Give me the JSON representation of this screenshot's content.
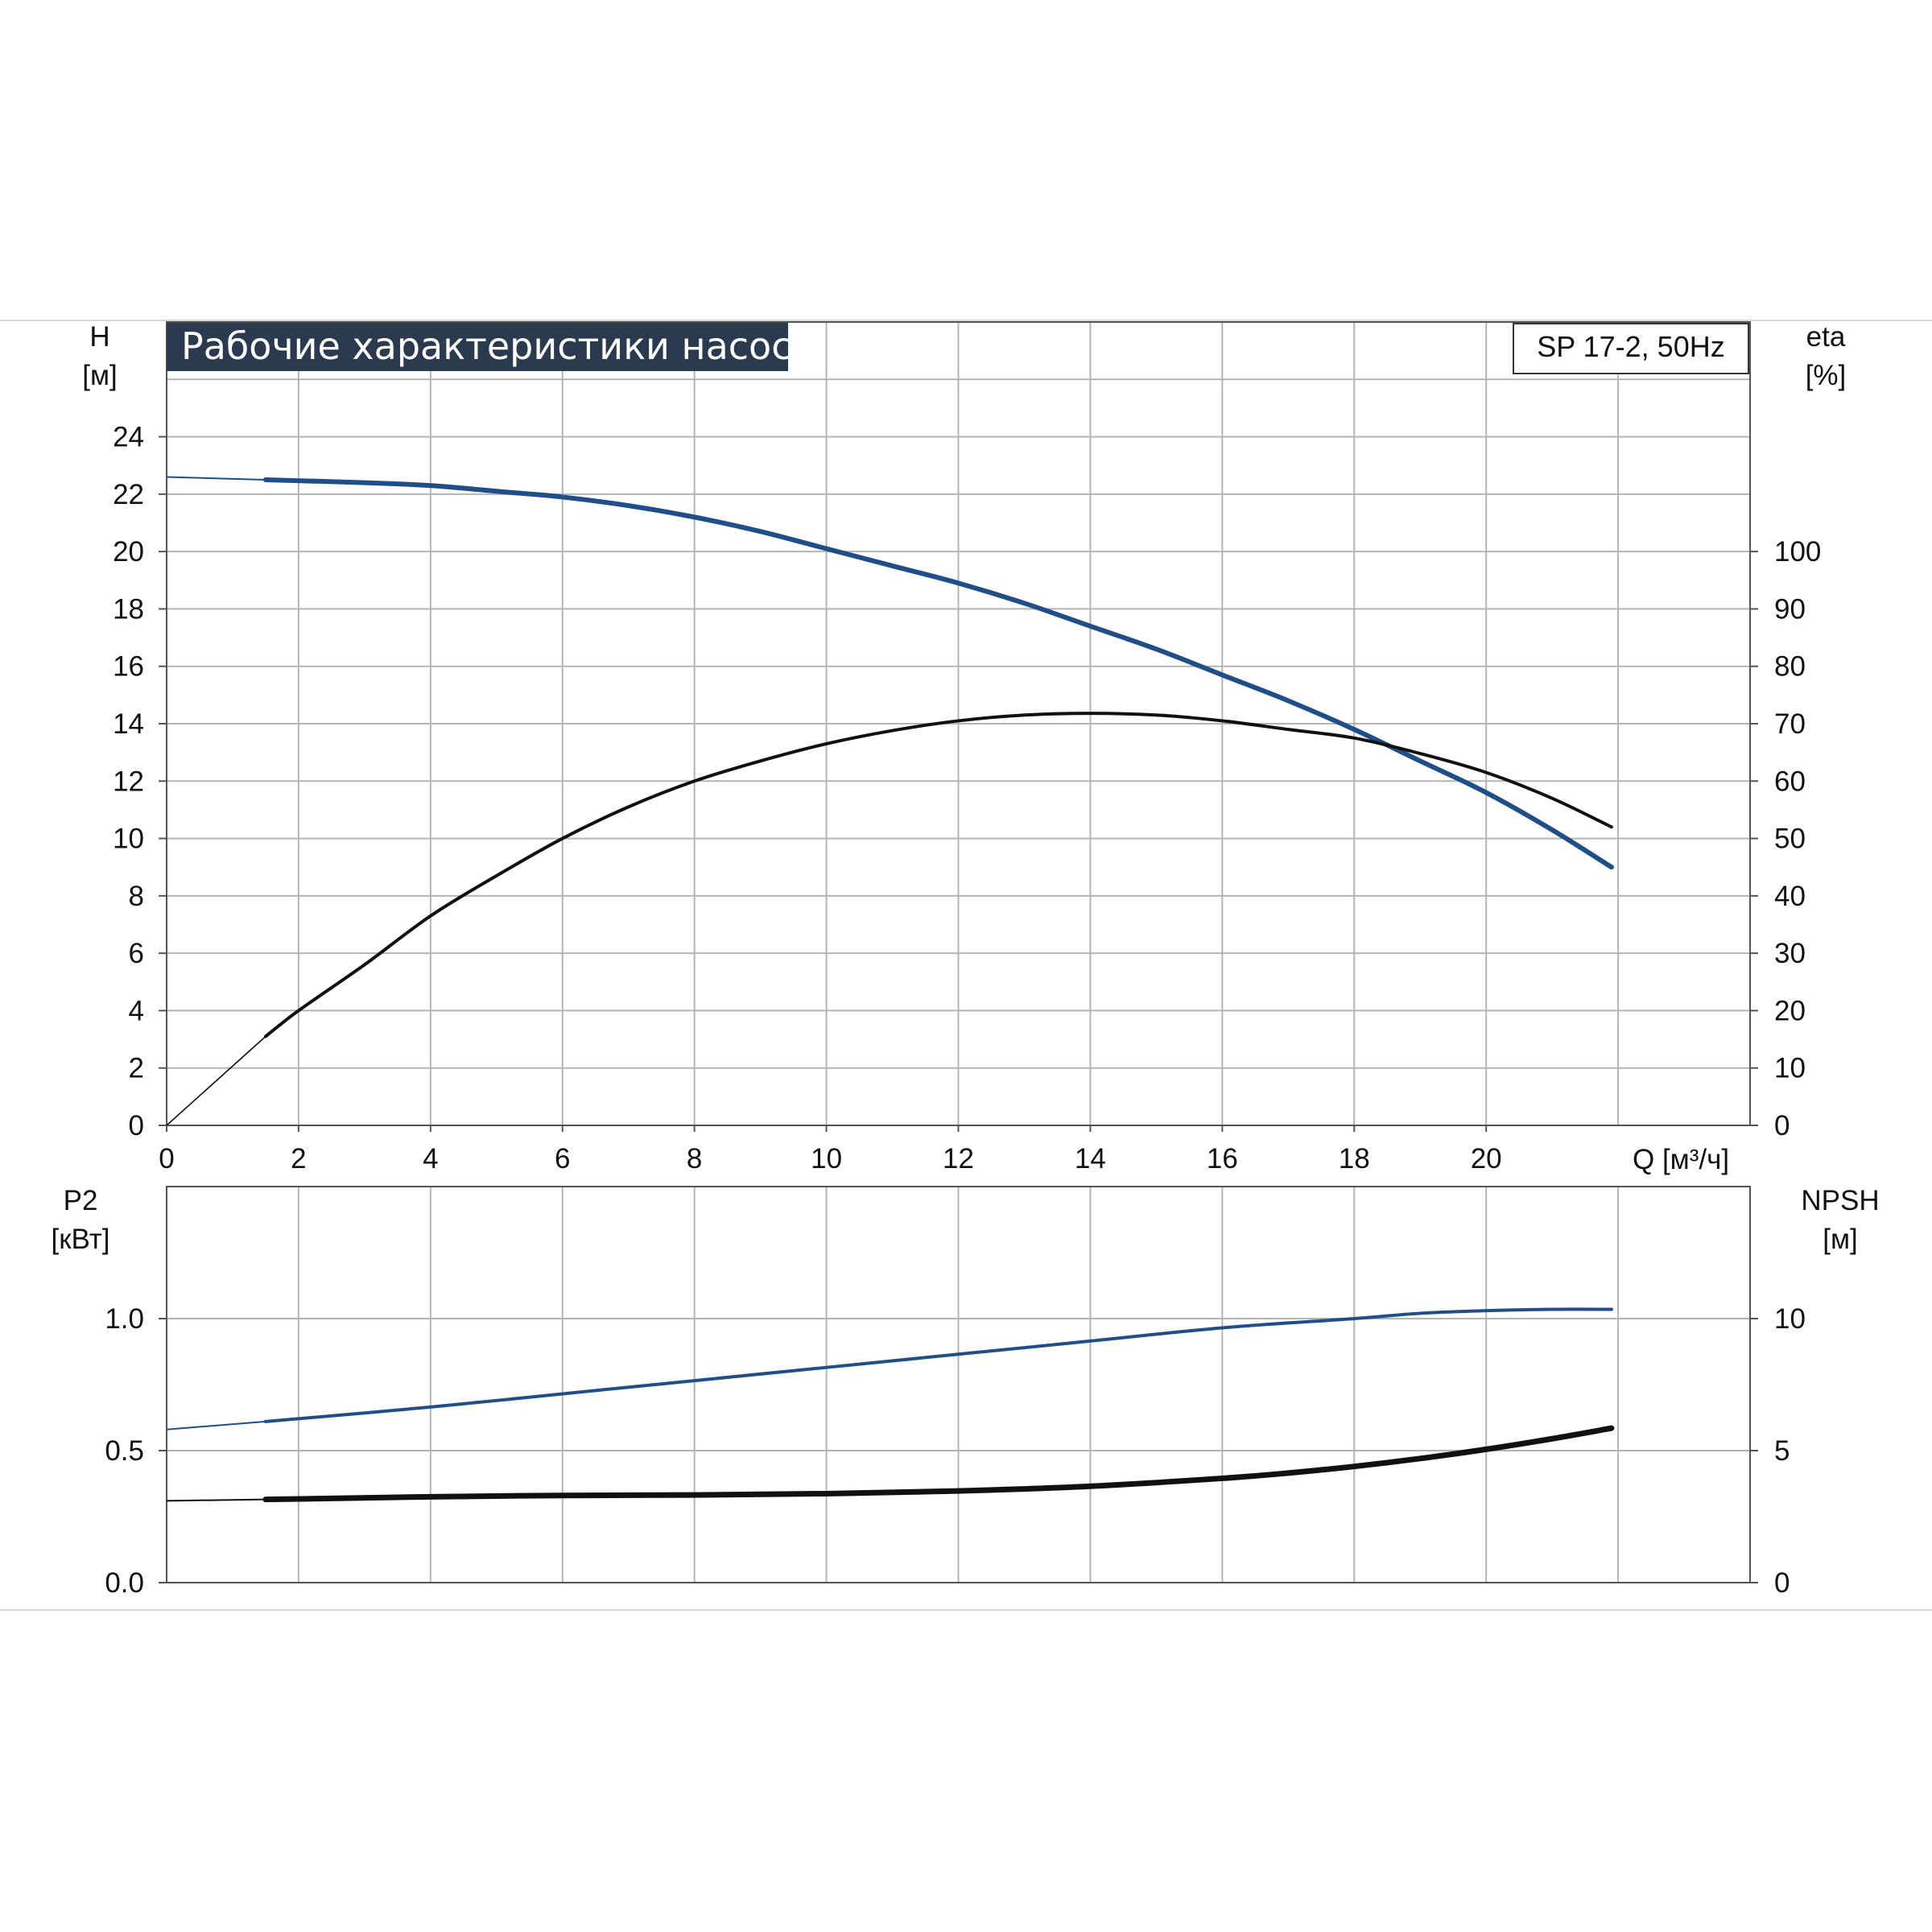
{
  "colors": {
    "head": "#1f4e89",
    "efficiency": "#111111",
    "power": "#1f4e89",
    "npsh": "#111111",
    "grid": "#b4b4b4",
    "title_bg": "#2b3a4f"
  },
  "chart_data": [
    {
      "type": "line",
      "title": "Рабочие характеристики насоса",
      "model": "SP 17-2, 50Hz",
      "xlabel": "Q [м³/ч]",
      "xlim": [
        0,
        24
      ],
      "x_ticks": [
        "0",
        "2",
        "4",
        "6",
        "8",
        "10",
        "12",
        "14",
        "16",
        "18",
        "20"
      ],
      "y_left": {
        "label": [
          "H",
          "[м]"
        ],
        "lim": [
          0,
          28
        ],
        "ticks": [
          "0",
          "2",
          "4",
          "6",
          "8",
          "10",
          "12",
          "14",
          "16",
          "18",
          "20",
          "22",
          "24"
        ]
      },
      "y_right": {
        "label": [
          "eta",
          "[%]"
        ],
        "lim": [
          0,
          140
        ],
        "ticks": [
          "0",
          "10",
          "20",
          "30",
          "40",
          "50",
          "60",
          "70",
          "80",
          "90",
          "100"
        ]
      },
      "grid": true,
      "series": [
        {
          "axis": "left",
          "x": [
            0,
            1.5,
            3,
            4,
            5,
            6,
            7,
            8,
            9,
            10,
            11,
            12,
            13,
            14,
            15,
            16,
            17,
            18,
            19,
            20,
            21,
            21.9
          ],
          "values": [
            22.6,
            22.5,
            22.4,
            22.3,
            22.1,
            21.9,
            21.6,
            21.2,
            20.7,
            20.1,
            19.5,
            18.9,
            18.2,
            17.4,
            16.6,
            15.7,
            14.8,
            13.8,
            12.7,
            11.6,
            10.3,
            9.0
          ]
        },
        {
          "axis": "right",
          "x": [
            0,
            1.5,
            2,
            3,
            4,
            5,
            6,
            7,
            8,
            9,
            10,
            11,
            12,
            13,
            14,
            15,
            16,
            17,
            18,
            19,
            20,
            21,
            21.9
          ],
          "values": [
            0,
            15.5,
            20,
            28,
            36.5,
            43.5,
            50,
            55.5,
            60,
            63.5,
            66.5,
            68.8,
            70.5,
            71.5,
            71.8,
            71.5,
            70.5,
            69,
            67.5,
            64.8,
            61.5,
            57,
            52
          ]
        }
      ]
    },
    {
      "type": "line",
      "xlim": [
        0,
        24
      ],
      "y_left": {
        "label": [
          "P2",
          "[кВт]"
        ],
        "lim": [
          0,
          1.5
        ],
        "ticks": [
          "0.0",
          "0.5",
          "1.0"
        ]
      },
      "y_right": {
        "label": [
          "NPSH",
          "[м]"
        ],
        "lim": [
          0,
          15
        ],
        "ticks": [
          "0",
          "5",
          "10"
        ]
      },
      "grid": true,
      "series": [
        {
          "axis": "left",
          "x": [
            0,
            1.5,
            4,
            6,
            8,
            10,
            12,
            14,
            16,
            18,
            19,
            20,
            21,
            21.9
          ],
          "values": [
            0.58,
            0.61,
            0.665,
            0.715,
            0.765,
            0.815,
            0.865,
            0.915,
            0.965,
            1.0,
            1.02,
            1.03,
            1.035,
            1.035
          ]
        },
        {
          "axis": "right",
          "x": [
            0,
            1.5,
            4,
            6,
            8,
            10,
            12,
            14,
            16,
            17,
            18,
            19,
            20,
            21,
            21.9
          ],
          "values": [
            3.1,
            3.15,
            3.25,
            3.3,
            3.32,
            3.37,
            3.47,
            3.65,
            3.95,
            4.15,
            4.4,
            4.7,
            5.05,
            5.45,
            5.85
          ]
        }
      ]
    }
  ]
}
